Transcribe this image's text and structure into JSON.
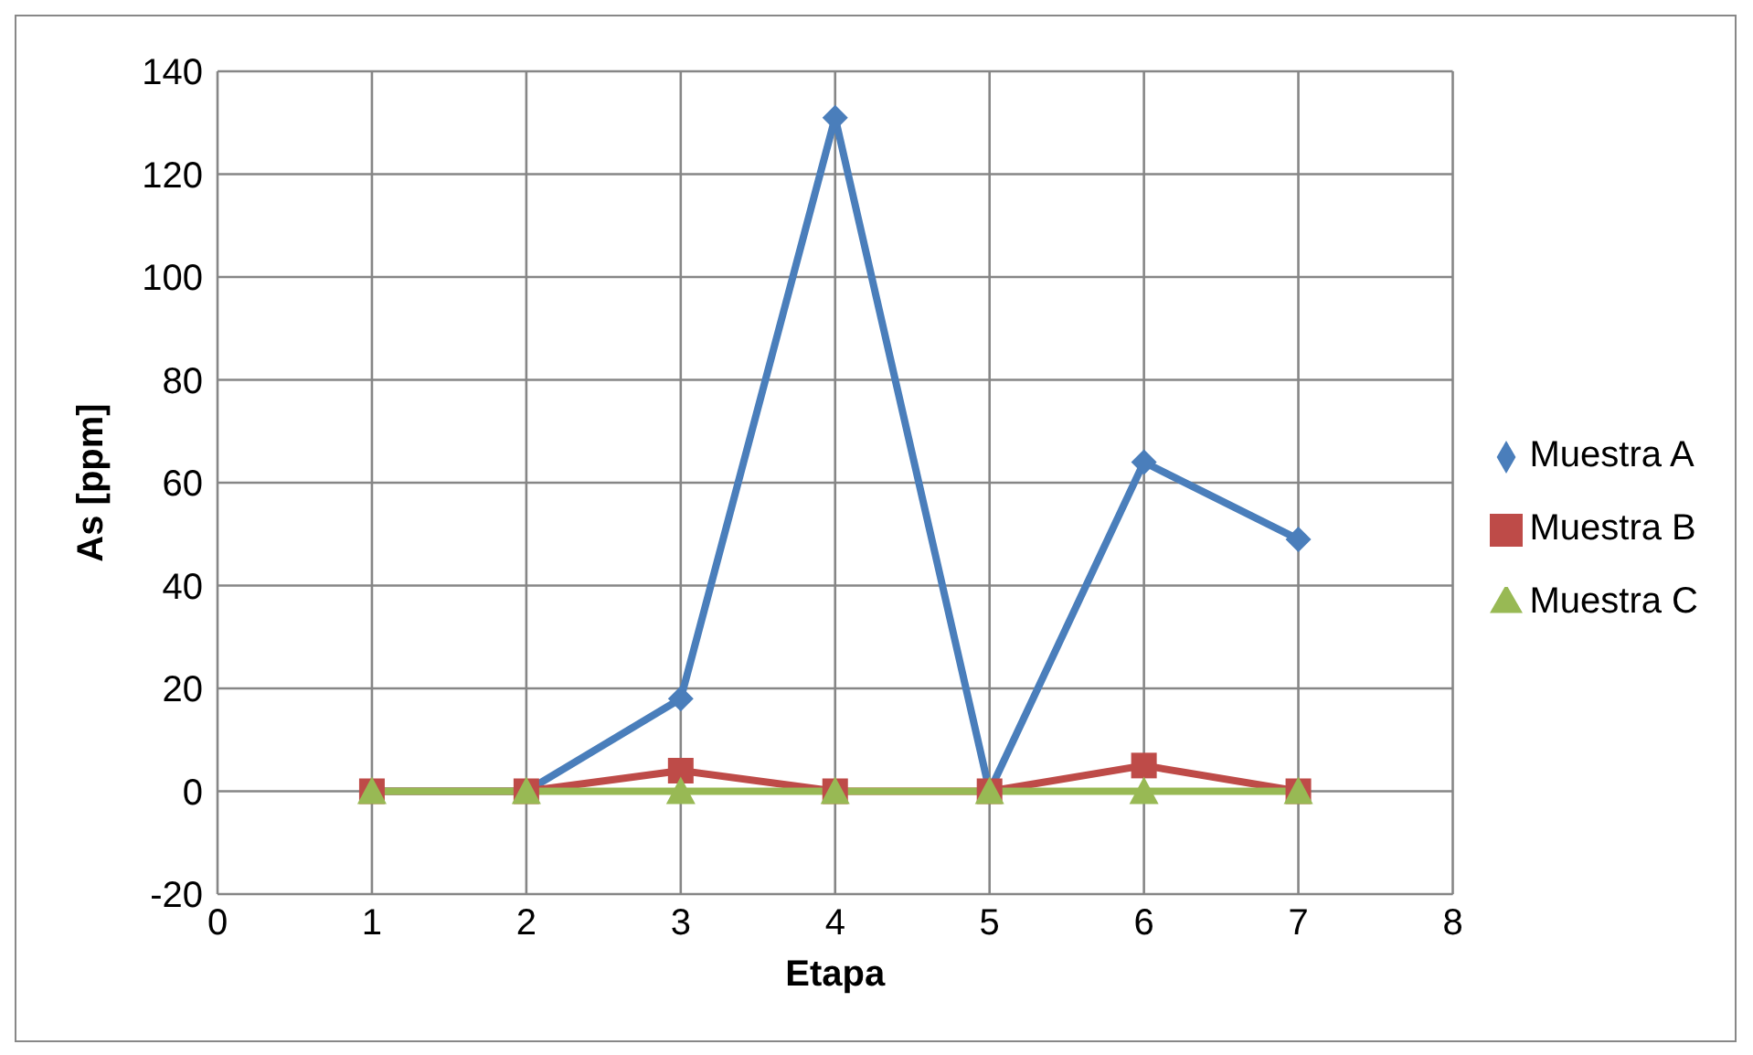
{
  "chart_data": {
    "type": "line",
    "xlabel": "Etapa",
    "ylabel": "As [ppm]",
    "x": [
      1,
      2,
      3,
      4,
      5,
      6,
      7
    ],
    "series": [
      {
        "name": "Muestra A",
        "color": "#4a7ebb",
        "marker": "diamond",
        "values": [
          0,
          0,
          18,
          131,
          0,
          64,
          49
        ]
      },
      {
        "name": "Muestra B",
        "color": "#be4b48",
        "marker": "square",
        "values": [
          0,
          0,
          4,
          0,
          0,
          5,
          0
        ]
      },
      {
        "name": "Muestra C",
        "color": "#98b954",
        "marker": "triangle",
        "values": [
          0,
          0,
          0,
          0,
          0,
          0,
          0
        ]
      }
    ],
    "xlim": [
      0,
      8
    ],
    "xticks": [
      0,
      1,
      2,
      3,
      4,
      5,
      6,
      7,
      8
    ],
    "ylim": [
      -20,
      140
    ],
    "yticks": [
      -20,
      0,
      20,
      40,
      60,
      80,
      100,
      120,
      140
    ],
    "grid": true,
    "legend": "right"
  }
}
